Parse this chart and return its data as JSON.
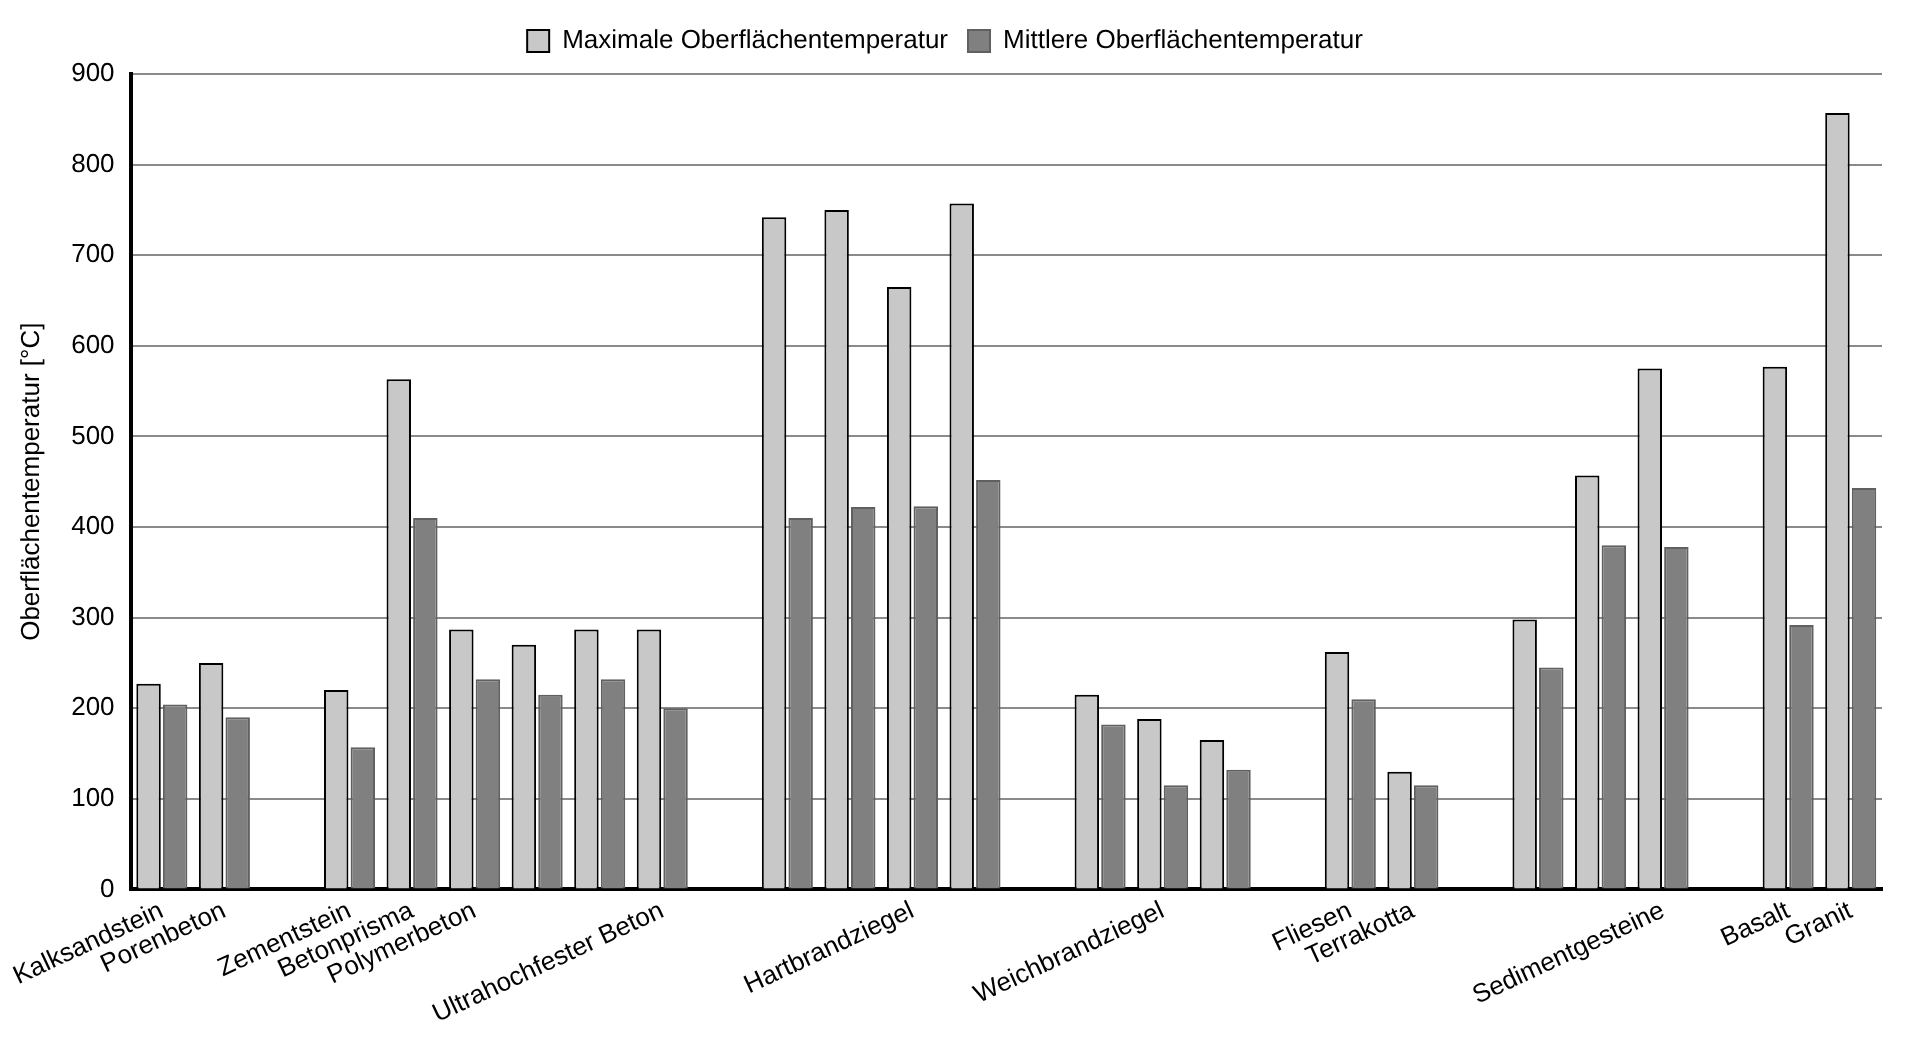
{
  "chart_data": {
    "type": "bar",
    "ylabel": "Oberflächentemperatur [°C]",
    "categories": [
      "Kalksandstein",
      "Porenbeton",
      null,
      "Zementstein",
      "Betonprisma",
      "Polymerbeton",
      null,
      null,
      "Ultrahochfester Beton",
      null,
      null,
      null,
      "Hartbrandziegel",
      null,
      null,
      null,
      "Weichbrandziegel",
      null,
      null,
      "Fliesen",
      "Terrakotta",
      null,
      null,
      null,
      "Sedimentgesteine",
      null,
      "Basalt",
      "Granit"
    ],
    "series": [
      {
        "name": "Maximale Oberflächentemperatur",
        "color": "#c8c8c8",
        "values": [
          227,
          250,
          null,
          220,
          563,
          287,
          270,
          287,
          287,
          null,
          742,
          750,
          665,
          757,
          null,
          215,
          188,
          165,
          null,
          262,
          130,
          null,
          298,
          457,
          575,
          null,
          577,
          857
        ]
      },
      {
        "name": "Mittlere Oberflächentemperatur",
        "color": "#808080",
        "values": [
          204,
          190,
          null,
          157,
          410,
          232,
          215,
          232,
          200,
          null,
          410,
          422,
          423,
          452,
          null,
          182,
          115,
          132,
          null,
          210,
          115,
          null,
          245,
          380,
          378,
          null,
          292,
          443
        ]
      }
    ],
    "ylim": [
      0,
      900
    ],
    "yticks": [
      0,
      100,
      200,
      300,
      400,
      500,
      600,
      700,
      800,
      900
    ],
    "grid": "y",
    "legend": "top"
  }
}
